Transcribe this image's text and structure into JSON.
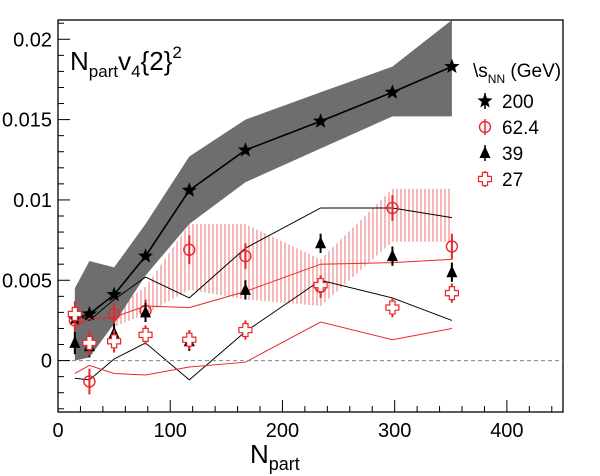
{
  "chart_data": {
    "type": "scatter",
    "title_main": "N",
    "title_sub": "part",
    "title_rest": "v",
    "title_sub2": "4",
    "title_tail": "{2}",
    "title_sup": "2",
    "xlabel_main": "N",
    "xlabel_sub": "part",
    "ylabel": "",
    "xlim": [
      0,
      450
    ],
    "ylim": [
      -0.0032,
      0.0212
    ],
    "x_ticks": [
      0,
      100,
      200,
      300,
      400
    ],
    "x_tick_labels": [
      "0",
      "100",
      "200",
      "300",
      "400"
    ],
    "y_ticks": [
      0,
      0.005,
      0.01,
      0.015,
      0.02
    ],
    "y_tick_labels": [
      "0",
      "0.005",
      "0.01",
      "0.015",
      "0.02"
    ],
    "zero_line": true,
    "grid": false,
    "legend_position": "top-right",
    "legend_header_main": "\\s",
    "legend_header_sub": "NN",
    "legend_header_tail": " (GeV)",
    "colors": {
      "black": "#000000",
      "red": "#e8282b",
      "gray_band": "#6e6e6e",
      "red_band": "#f29a9a"
    },
    "series": [
      {
        "name": "200",
        "marker": "star",
        "color": "#000000",
        "connected": true,
        "x": [
          15,
          28,
          50,
          78,
          117,
          167,
          234,
          298,
          351
        ],
        "y": [
          0.0026,
          0.0029,
          0.0041,
          0.0065,
          0.0106,
          0.0131,
          0.0149,
          0.0167,
          0.0183
        ],
        "yerr": [
          0.0002,
          0.0002,
          0.0002,
          0.0002,
          0.0002,
          0.0002,
          0.0002,
          0.0002,
          0.0002
        ],
        "band_low": [
          0.0,
          0.0002,
          0.0023,
          0.0053,
          0.0085,
          0.0111,
          0.0132,
          0.0152,
          0.0152
        ],
        "band_high": [
          0.0045,
          0.0062,
          0.0058,
          0.0085,
          0.0127,
          0.015,
          0.0167,
          0.0183,
          0.0212
        ]
      },
      {
        "name": "62.4",
        "marker": "open-circle",
        "color": "#e8282b",
        "connected": false,
        "x": [
          15,
          28,
          50,
          78,
          117,
          167,
          234,
          298,
          351
        ],
        "y": [
          0.0025,
          -0.0013,
          0.0029,
          0.0031,
          0.0069,
          0.0065,
          0.0046,
          0.0095,
          0.0071
        ],
        "yerr": [
          0.0007,
          0.0008,
          0.0007,
          0.0007,
          0.0009,
          0.0008,
          0.0007,
          0.0008,
          0.0008
        ],
        "band_low": [
          0.0024,
          0.0015,
          0.0021,
          0.0029,
          0.0044,
          0.0038,
          0.0034,
          0.0074,
          0.0074
        ],
        "band_high": [
          0.0029,
          0.0024,
          0.0032,
          0.0046,
          0.0085,
          0.0085,
          0.0063,
          0.0107,
          0.0107
        ]
      },
      {
        "name": "39",
        "marker": "filled-triangle",
        "color": "#000000",
        "connected": false,
        "x": [
          15,
          28,
          50,
          78,
          117,
          167,
          234,
          298,
          351
        ],
        "y": [
          0.0011,
          0.0009,
          0.0017,
          0.003,
          0.0012,
          0.0044,
          0.0073,
          0.0065,
          0.0055
        ],
        "yerr": [
          0.0007,
          0.0007,
          0.0006,
          0.0006,
          0.0006,
          0.0006,
          0.0006,
          0.0006,
          0.0006
        ],
        "band_low": [
          -0.0011,
          -0.0012,
          0.0001,
          0.0011,
          -0.0012,
          0.0018,
          0.005,
          0.0039,
          0.0025
        ],
        "band_high": [
          0.0029,
          0.0025,
          0.0038,
          0.0052,
          0.0039,
          0.007,
          0.0095,
          0.0095,
          0.0089
        ]
      },
      {
        "name": "27",
        "marker": "open-cross",
        "color": "#e8282b",
        "connected": false,
        "x": [
          15,
          28,
          50,
          78,
          117,
          167,
          234,
          298,
          351
        ],
        "y": [
          0.0029,
          0.0011,
          0.0012,
          0.0016,
          0.0013,
          0.0019,
          0.0047,
          0.0033,
          0.0042
        ],
        "yerr": [
          0.0008,
          0.0008,
          0.0007,
          0.0006,
          0.0006,
          0.0006,
          0.0006,
          0.0006,
          0.0006
        ],
        "band_low": [
          -0.0008,
          -0.0003,
          -0.0008,
          -0.0009,
          -0.0004,
          -0.0001,
          0.0024,
          0.0013,
          0.002
        ],
        "band_high": [
          0.0021,
          0.0026,
          0.0027,
          0.0034,
          0.0033,
          0.0043,
          0.006,
          0.0061,
          0.0063
        ]
      }
    ]
  }
}
